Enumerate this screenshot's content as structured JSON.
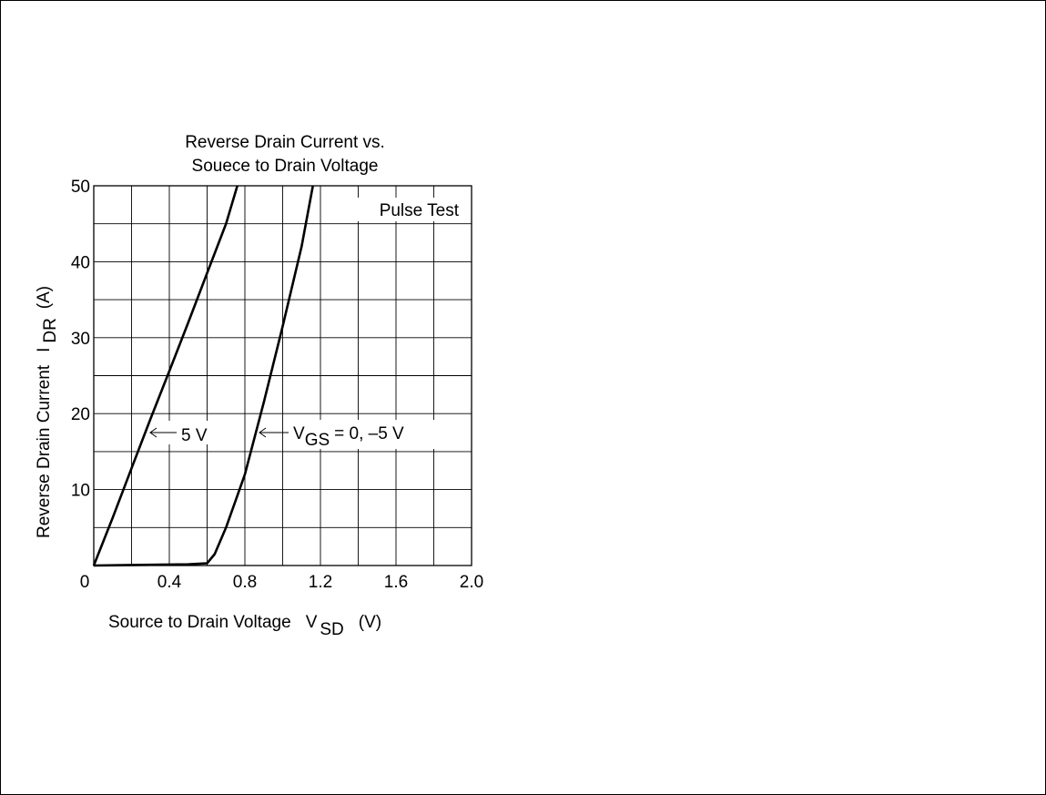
{
  "chart_data": {
    "type": "line",
    "title_line1": "Reverse Drain Current vs.",
    "title_line2": "Souece to Drain Voltage",
    "xlabel": "Source to Drain Voltage",
    "xlabel_symbol": "V",
    "xlabel_subscript": "SD",
    "xlabel_unit": "(V)",
    "ylabel": "Reverse Drain Current",
    "ylabel_symbol": "I",
    "ylabel_subscript": "DR",
    "ylabel_unit": "(A)",
    "xlim": [
      0,
      2.0
    ],
    "ylim": [
      0,
      50
    ],
    "x_ticks": [
      "0",
      "0.4",
      "0.8",
      "1.2",
      "1.6",
      "2.0"
    ],
    "y_ticks": [
      "10",
      "20",
      "30",
      "40",
      "50"
    ],
    "grid": true,
    "annotation": "Pulse Test",
    "series": [
      {
        "name": "5 V",
        "x": [
          0,
          0.1,
          0.2,
          0.3,
          0.4,
          0.5,
          0.6,
          0.7,
          0.76
        ],
        "y": [
          0,
          6.3,
          12.8,
          19.3,
          25.6,
          32,
          38.5,
          45,
          50
        ]
      },
      {
        "name": "VGS = 0, –5 V",
        "x": [
          0,
          0.3,
          0.5,
          0.6,
          0.64,
          0.7,
          0.8,
          0.9,
          1.0,
          1.1,
          1.16
        ],
        "y": [
          0,
          0.1,
          0.15,
          0.3,
          1.5,
          5,
          12,
          21.5,
          31.5,
          42,
          50
        ]
      }
    ],
    "labels": [
      {
        "text": "5 V",
        "series": 0
      },
      {
        "text_main": "V",
        "text_sub": "GS",
        "text_rest": "= 0, –5 V",
        "series": 1
      }
    ]
  }
}
